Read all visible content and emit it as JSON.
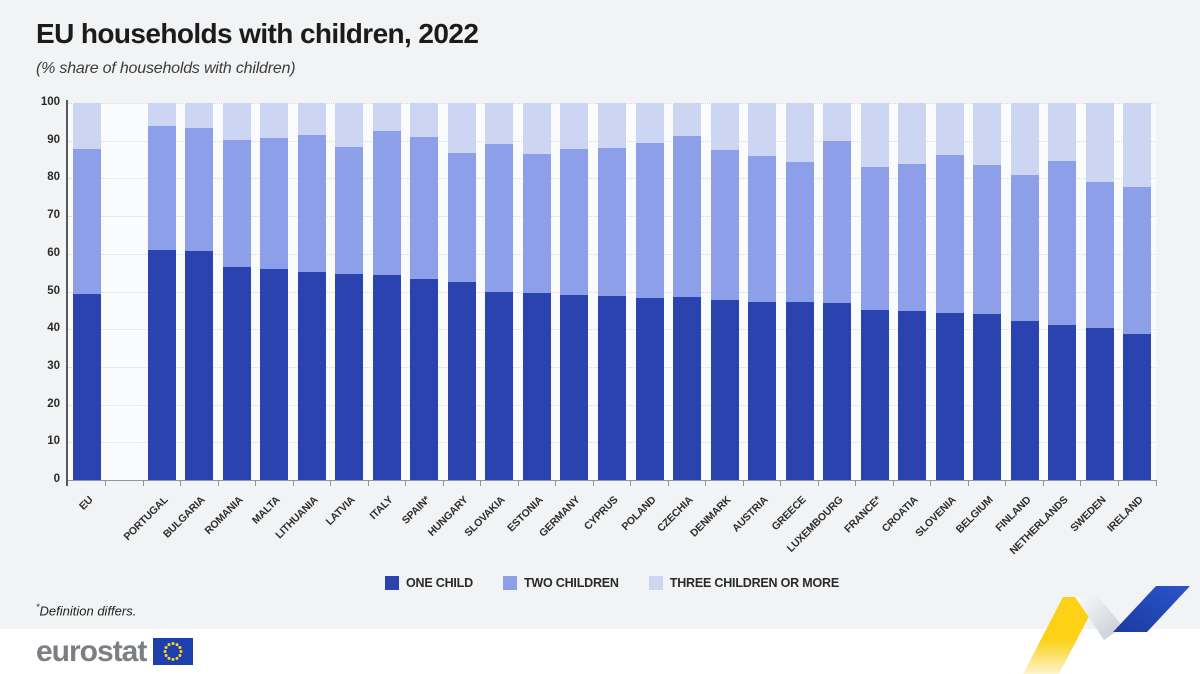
{
  "header": {
    "title": "EU households with children, 2022",
    "subtitle": "(% share of households with children)"
  },
  "footnote": {
    "asterisk": "*",
    "text": "Definition differs."
  },
  "footer": {
    "logo_text": "eurostat",
    "flag_color": "#1e3fae",
    "star_color": "#ffd617"
  },
  "decor": {
    "ribbon_yellow": "#fcd116",
    "ribbon_blue": "#2148c0",
    "ribbon_gray": "#c4c9d2"
  },
  "chart_data": {
    "type": "bar",
    "stacked": true,
    "title": "EU households with children, 2022",
    "subtitle": "(% share of households with children)",
    "xlabel": "",
    "ylabel": "% share of households with children",
    "ylim": [
      0,
      100
    ],
    "y_ticks": [
      0,
      10,
      20,
      30,
      40,
      50,
      60,
      70,
      80,
      90,
      100
    ],
    "grid": "dotted-horizontal",
    "legend_position": "bottom-center",
    "eu_separated_by_gap": true,
    "categories": [
      "EU",
      "PORTUGAL",
      "BULGARIA",
      "ROMANIA",
      "MALTA",
      "LITHUANIA",
      "LATVIA",
      "ITALY",
      "SPAIN*",
      "HUNGARY",
      "SLOVAKIA",
      "ESTONIA",
      "GERMANY",
      "CYPRUS",
      "POLAND",
      "CZECHIA",
      "DENMARK",
      "AUSTRIA",
      "GREECE",
      "LUXEMBOURG",
      "FRANCE*",
      "CROATIA",
      "SLOVENIA",
      "BELGIUM",
      "FINLAND",
      "NETHERLANDS",
      "SWEDEN",
      "IRELAND"
    ],
    "series": [
      {
        "name": "ONE CHILD",
        "color": "#2a43ae",
        "values": [
          49.4,
          61.0,
          60.7,
          56.5,
          56.1,
          55.3,
          54.7,
          54.5,
          53.3,
          52.6,
          49.9,
          49.7,
          49.2,
          48.9,
          48.3,
          48.5,
          47.8,
          47.3,
          47.2,
          46.9,
          45.2,
          44.7,
          44.2,
          44.1,
          42.3,
          41.0,
          40.4,
          38.8
        ]
      },
      {
        "name": "TWO CHILDREN",
        "color": "#8c9fe8",
        "values": [
          38.4,
          32.8,
          32.8,
          33.8,
          34.5,
          36.1,
          33.6,
          38.0,
          37.6,
          34.2,
          39.1,
          36.8,
          38.5,
          39.3,
          41.0,
          42.7,
          39.8,
          38.6,
          37.1,
          42.9,
          37.7,
          39.2,
          42.0,
          39.4,
          38.7,
          43.7,
          38.6,
          38.9
        ]
      },
      {
        "name": "THREE CHILDREN OR MORE",
        "color": "#ccd6f2",
        "values": [
          12.2,
          6.2,
          6.5,
          9.7,
          9.4,
          8.6,
          11.7,
          7.5,
          9.1,
          13.2,
          11.0,
          13.5,
          12.3,
          11.8,
          10.7,
          8.8,
          12.4,
          14.1,
          15.7,
          10.2,
          17.1,
          16.1,
          13.8,
          16.5,
          19.0,
          15.3,
          21.0,
          22.3
        ]
      }
    ]
  }
}
